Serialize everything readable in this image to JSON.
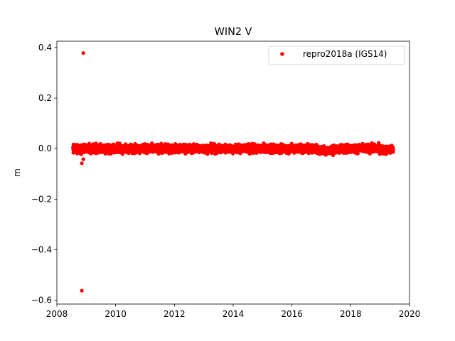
{
  "chart_data": {
    "type": "scatter",
    "title": "WIN2 V",
    "xlabel": "",
    "ylabel": "m",
    "xlim": [
      2008,
      2020
    ],
    "ylim": [
      -0.615,
      0.425
    ],
    "xticks": [
      2008,
      2010,
      2012,
      2014,
      2016,
      2018,
      2020
    ],
    "xtick_labels": [
      "2008",
      "2010",
      "2012",
      "2014",
      "2016",
      "2018",
      "2020"
    ],
    "yticks": [
      0.4,
      0.2,
      0.0,
      -0.2,
      -0.4,
      -0.6
    ],
    "ytick_labels": [
      "0.4",
      "0.2",
      "0.0",
      "−0.2",
      "−0.4",
      "−0.6"
    ],
    "grid": false,
    "legend_position": "top-right",
    "series": [
      {
        "name": "repro2018a (IGS14)",
        "color": "#ff0000",
        "marker": "circle",
        "x_range": [
          2008.55,
          2019.45
        ],
        "baseline": 0.0,
        "spread": 0.008,
        "outliers": [
          {
            "x": 2008.9,
            "y": 0.378
          },
          {
            "x": 2008.85,
            "y": -0.562
          },
          {
            "x": 2008.85,
            "y": -0.058
          },
          {
            "x": 2008.9,
            "y": -0.042
          },
          {
            "x": 2008.85,
            "y": -0.015
          }
        ]
      }
    ]
  }
}
